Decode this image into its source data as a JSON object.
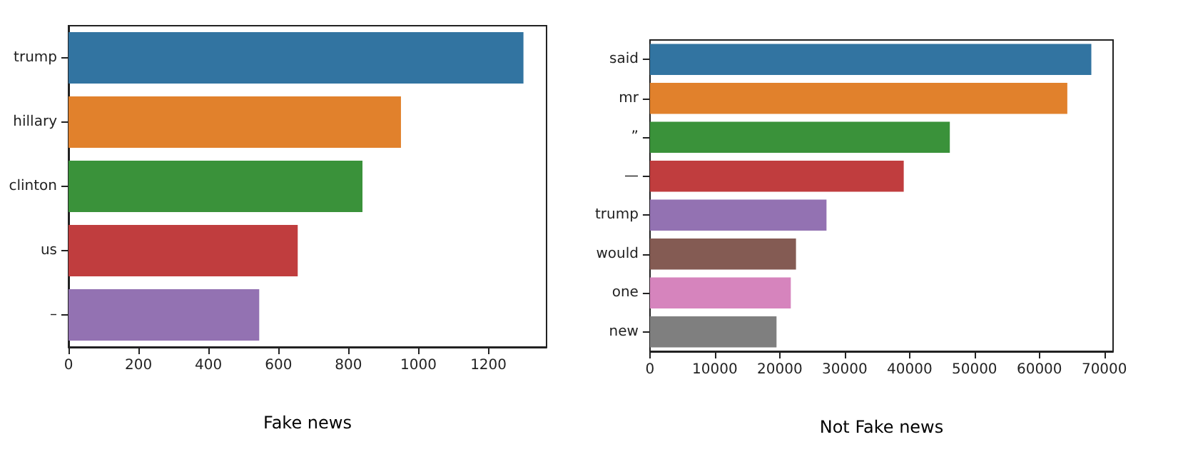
{
  "chart_data": [
    {
      "type": "bar",
      "orientation": "horizontal",
      "xlabel": "Fake news",
      "categories": [
        "trump",
        "hillary",
        "clinton",
        "us",
        "–"
      ],
      "values": [
        1300,
        950,
        840,
        655,
        545
      ],
      "colors": [
        "#3274a1",
        "#e1812c",
        "#3a923a",
        "#c03d3e",
        "#9372b2"
      ],
      "xlim": [
        0,
        1366
      ],
      "xticks": [
        0,
        200,
        400,
        600,
        800,
        1000,
        1200
      ],
      "grid": false
    },
    {
      "type": "bar",
      "orientation": "horizontal",
      "xlabel": "Not Fake news",
      "categories": [
        "said",
        "mr",
        "”",
        "—",
        "trump",
        "would",
        "one",
        "new"
      ],
      "values": [
        68000,
        64300,
        46200,
        39100,
        27200,
        22500,
        21700,
        19500
      ],
      "colors": [
        "#3274a1",
        "#e1812c",
        "#3a923a",
        "#c03d3e",
        "#9372b2",
        "#845b53",
        "#d684bd",
        "#7f7f7f"
      ],
      "xlim": [
        0,
        71350
      ],
      "xticks": [
        0,
        10000,
        20000,
        30000,
        40000,
        50000,
        60000,
        70000
      ],
      "grid": false
    }
  ]
}
